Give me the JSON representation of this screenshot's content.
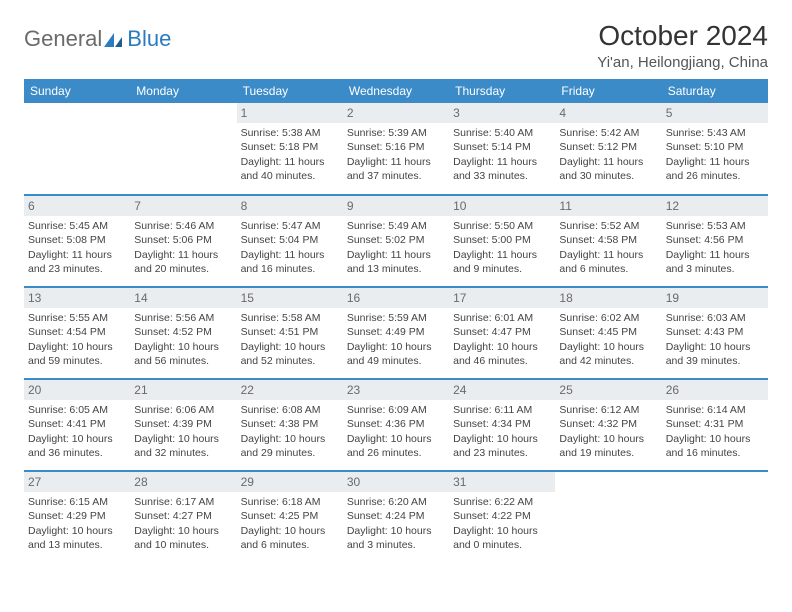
{
  "logo": {
    "word1": "General",
    "word2": "Blue"
  },
  "title": "October 2024",
  "location": "Yi'an, Heilongjiang, China",
  "day_headers": [
    "Sunday",
    "Monday",
    "Tuesday",
    "Wednesday",
    "Thursday",
    "Friday",
    "Saturday"
  ],
  "colors": {
    "header_bg": "#3b8bc9",
    "header_fg": "#ffffff",
    "daynum_bg": "#e9edf0",
    "rule": "#3b8bc9",
    "logo_gray": "#6b6b6b",
    "logo_blue": "#2b7bbf"
  },
  "weeks": [
    [
      null,
      null,
      {
        "n": "1",
        "sr": "Sunrise: 5:38 AM",
        "ss": "Sunset: 5:18 PM",
        "dl": "Daylight: 11 hours and 40 minutes."
      },
      {
        "n": "2",
        "sr": "Sunrise: 5:39 AM",
        "ss": "Sunset: 5:16 PM",
        "dl": "Daylight: 11 hours and 37 minutes."
      },
      {
        "n": "3",
        "sr": "Sunrise: 5:40 AM",
        "ss": "Sunset: 5:14 PM",
        "dl": "Daylight: 11 hours and 33 minutes."
      },
      {
        "n": "4",
        "sr": "Sunrise: 5:42 AM",
        "ss": "Sunset: 5:12 PM",
        "dl": "Daylight: 11 hours and 30 minutes."
      },
      {
        "n": "5",
        "sr": "Sunrise: 5:43 AM",
        "ss": "Sunset: 5:10 PM",
        "dl": "Daylight: 11 hours and 26 minutes."
      }
    ],
    [
      {
        "n": "6",
        "sr": "Sunrise: 5:45 AM",
        "ss": "Sunset: 5:08 PM",
        "dl": "Daylight: 11 hours and 23 minutes."
      },
      {
        "n": "7",
        "sr": "Sunrise: 5:46 AM",
        "ss": "Sunset: 5:06 PM",
        "dl": "Daylight: 11 hours and 20 minutes."
      },
      {
        "n": "8",
        "sr": "Sunrise: 5:47 AM",
        "ss": "Sunset: 5:04 PM",
        "dl": "Daylight: 11 hours and 16 minutes."
      },
      {
        "n": "9",
        "sr": "Sunrise: 5:49 AM",
        "ss": "Sunset: 5:02 PM",
        "dl": "Daylight: 11 hours and 13 minutes."
      },
      {
        "n": "10",
        "sr": "Sunrise: 5:50 AM",
        "ss": "Sunset: 5:00 PM",
        "dl": "Daylight: 11 hours and 9 minutes."
      },
      {
        "n": "11",
        "sr": "Sunrise: 5:52 AM",
        "ss": "Sunset: 4:58 PM",
        "dl": "Daylight: 11 hours and 6 minutes."
      },
      {
        "n": "12",
        "sr": "Sunrise: 5:53 AM",
        "ss": "Sunset: 4:56 PM",
        "dl": "Daylight: 11 hours and 3 minutes."
      }
    ],
    [
      {
        "n": "13",
        "sr": "Sunrise: 5:55 AM",
        "ss": "Sunset: 4:54 PM",
        "dl": "Daylight: 10 hours and 59 minutes."
      },
      {
        "n": "14",
        "sr": "Sunrise: 5:56 AM",
        "ss": "Sunset: 4:52 PM",
        "dl": "Daylight: 10 hours and 56 minutes."
      },
      {
        "n": "15",
        "sr": "Sunrise: 5:58 AM",
        "ss": "Sunset: 4:51 PM",
        "dl": "Daylight: 10 hours and 52 minutes."
      },
      {
        "n": "16",
        "sr": "Sunrise: 5:59 AM",
        "ss": "Sunset: 4:49 PM",
        "dl": "Daylight: 10 hours and 49 minutes."
      },
      {
        "n": "17",
        "sr": "Sunrise: 6:01 AM",
        "ss": "Sunset: 4:47 PM",
        "dl": "Daylight: 10 hours and 46 minutes."
      },
      {
        "n": "18",
        "sr": "Sunrise: 6:02 AM",
        "ss": "Sunset: 4:45 PM",
        "dl": "Daylight: 10 hours and 42 minutes."
      },
      {
        "n": "19",
        "sr": "Sunrise: 6:03 AM",
        "ss": "Sunset: 4:43 PM",
        "dl": "Daylight: 10 hours and 39 minutes."
      }
    ],
    [
      {
        "n": "20",
        "sr": "Sunrise: 6:05 AM",
        "ss": "Sunset: 4:41 PM",
        "dl": "Daylight: 10 hours and 36 minutes."
      },
      {
        "n": "21",
        "sr": "Sunrise: 6:06 AM",
        "ss": "Sunset: 4:39 PM",
        "dl": "Daylight: 10 hours and 32 minutes."
      },
      {
        "n": "22",
        "sr": "Sunrise: 6:08 AM",
        "ss": "Sunset: 4:38 PM",
        "dl": "Daylight: 10 hours and 29 minutes."
      },
      {
        "n": "23",
        "sr": "Sunrise: 6:09 AM",
        "ss": "Sunset: 4:36 PM",
        "dl": "Daylight: 10 hours and 26 minutes."
      },
      {
        "n": "24",
        "sr": "Sunrise: 6:11 AM",
        "ss": "Sunset: 4:34 PM",
        "dl": "Daylight: 10 hours and 23 minutes."
      },
      {
        "n": "25",
        "sr": "Sunrise: 6:12 AM",
        "ss": "Sunset: 4:32 PM",
        "dl": "Daylight: 10 hours and 19 minutes."
      },
      {
        "n": "26",
        "sr": "Sunrise: 6:14 AM",
        "ss": "Sunset: 4:31 PM",
        "dl": "Daylight: 10 hours and 16 minutes."
      }
    ],
    [
      {
        "n": "27",
        "sr": "Sunrise: 6:15 AM",
        "ss": "Sunset: 4:29 PM",
        "dl": "Daylight: 10 hours and 13 minutes."
      },
      {
        "n": "28",
        "sr": "Sunrise: 6:17 AM",
        "ss": "Sunset: 4:27 PM",
        "dl": "Daylight: 10 hours and 10 minutes."
      },
      {
        "n": "29",
        "sr": "Sunrise: 6:18 AM",
        "ss": "Sunset: 4:25 PM",
        "dl": "Daylight: 10 hours and 6 minutes."
      },
      {
        "n": "30",
        "sr": "Sunrise: 6:20 AM",
        "ss": "Sunset: 4:24 PM",
        "dl": "Daylight: 10 hours and 3 minutes."
      },
      {
        "n": "31",
        "sr": "Sunrise: 6:22 AM",
        "ss": "Sunset: 4:22 PM",
        "dl": "Daylight: 10 hours and 0 minutes."
      },
      null,
      null
    ]
  ]
}
